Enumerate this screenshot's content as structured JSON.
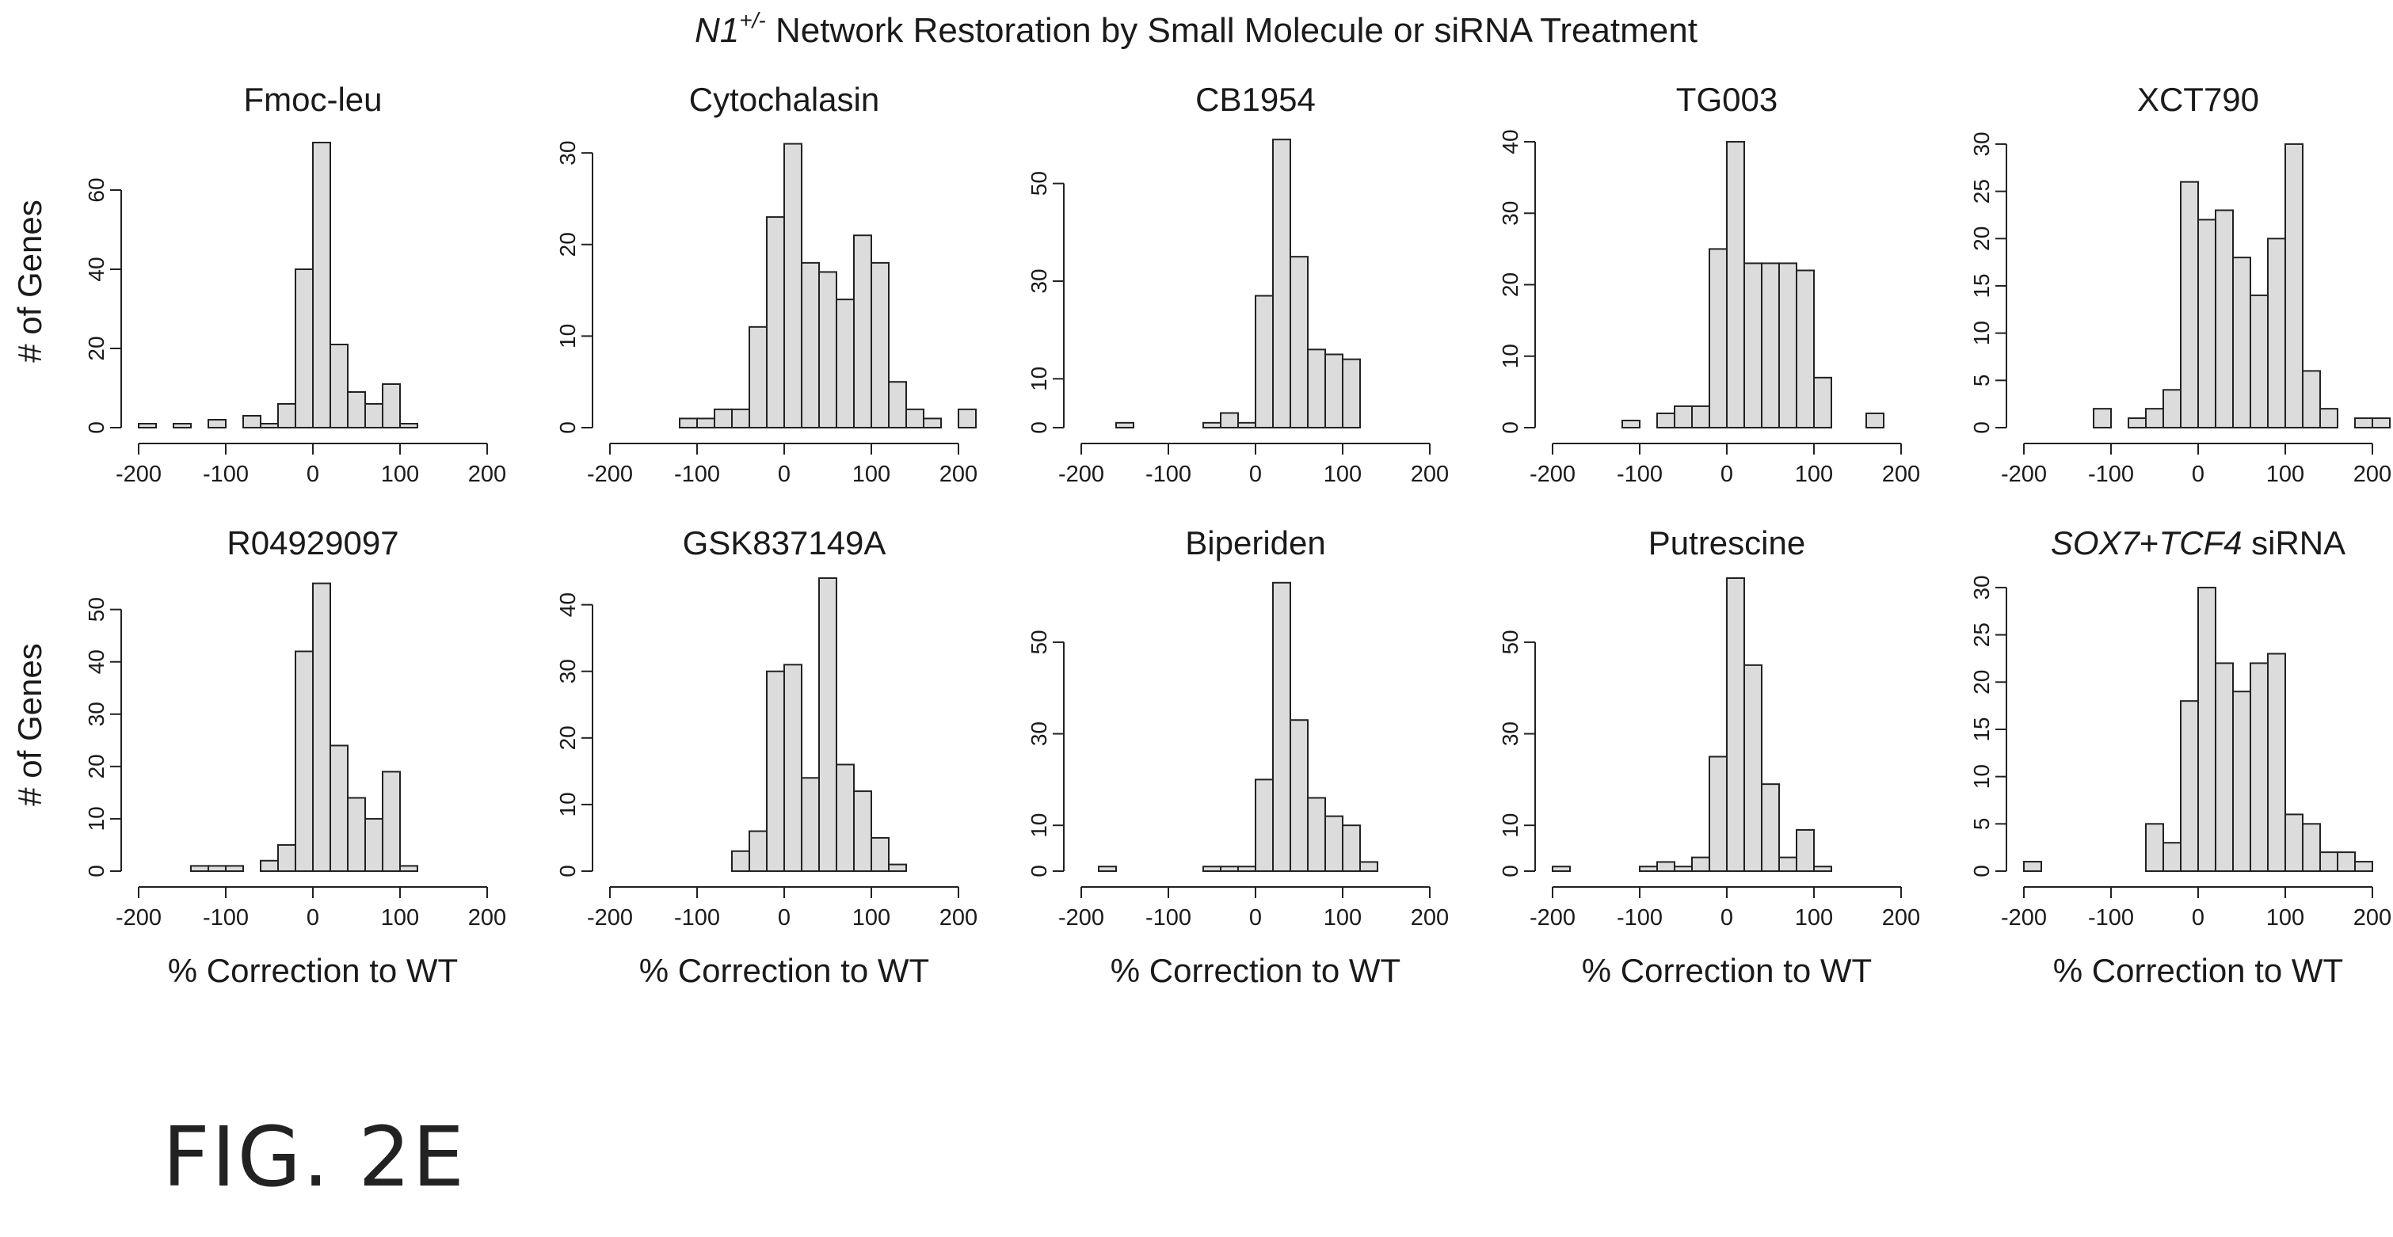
{
  "figure": {
    "title_gene": "N1",
    "title_sup": "+/-",
    "title_rest": " Network Restoration by Small Molecule or siRNA Treatment",
    "fig_label": "FIG. 2E"
  },
  "y_axis_label": "# of Genes",
  "x_axis_label": "% Correction to WT",
  "colors": {
    "bar_fill": "#dcdcdc",
    "bar_stroke": "#222222",
    "axis": "#222222"
  },
  "chart_data": [
    {
      "type": "bar",
      "title": "Fmoc-leu",
      "title_parts": [
        {
          "text": "Fmoc-leu",
          "italic": false
        }
      ],
      "xlim": [
        -200,
        200
      ],
      "xticks": [
        -200,
        -100,
        0,
        100,
        200
      ],
      "ylim": [
        0,
        74
      ],
      "yticks": [
        0,
        20,
        40,
        60
      ],
      "bin_start": -200,
      "bin_width": 20,
      "values": [
        1,
        0,
        1,
        0,
        2,
        0,
        3,
        1,
        6,
        40,
        72,
        21,
        9,
        6,
        11,
        1
      ]
    },
    {
      "type": "bar",
      "title": "Cytochalasin",
      "title_parts": [
        {
          "text": "Cytochalasin",
          "italic": false
        }
      ],
      "xlim": [
        -200,
        200
      ],
      "xticks": [
        -200,
        -100,
        0,
        100,
        200
      ],
      "ylim": [
        0,
        32
      ],
      "yticks": [
        0,
        10,
        20,
        30
      ],
      "bin_start": -200,
      "bin_width": 20,
      "values": [
        0,
        0,
        0,
        0,
        1,
        1,
        2,
        2,
        11,
        23,
        31,
        18,
        17,
        14,
        21,
        18,
        5,
        2,
        1,
        0,
        2
      ]
    },
    {
      "type": "bar",
      "title": "CB1954",
      "title_parts": [
        {
          "text": "CB1954",
          "italic": false
        }
      ],
      "xlim": [
        -200,
        200
      ],
      "xticks": [
        -200,
        -100,
        0,
        100,
        200
      ],
      "ylim": [
        0,
        60
      ],
      "yticks": [
        0,
        10,
        30,
        50
      ],
      "bin_start": -160,
      "bin_width": 20,
      "values": [
        1,
        0,
        0,
        0,
        0,
        1,
        3,
        1,
        27,
        59,
        35,
        16,
        15,
        14
      ]
    },
    {
      "type": "bar",
      "title": "TG003",
      "title_parts": [
        {
          "text": "TG003",
          "italic": false
        }
      ],
      "xlim": [
        -200,
        200
      ],
      "xticks": [
        -200,
        -100,
        0,
        100,
        200
      ],
      "ylim": [
        0,
        41
      ],
      "yticks": [
        0,
        10,
        20,
        30,
        40
      ],
      "bin_start": -120,
      "bin_width": 20,
      "values": [
        1,
        0,
        2,
        3,
        3,
        25,
        40,
        23,
        23,
        23,
        22,
        7,
        0,
        0,
        2
      ]
    },
    {
      "type": "bar",
      "title": "XCT790",
      "title_parts": [
        {
          "text": "XCT790",
          "italic": false
        }
      ],
      "xlim": [
        -200,
        200
      ],
      "xticks": [
        -200,
        -100,
        0,
        100,
        200
      ],
      "ylim": [
        0,
        31
      ],
      "yticks": [
        0,
        5,
        10,
        15,
        20,
        25,
        30
      ],
      "bin_start": -120,
      "bin_width": 20,
      "values": [
        2,
        0,
        1,
        2,
        4,
        26,
        22,
        23,
        18,
        14,
        20,
        30,
        6,
        2,
        0,
        1,
        1
      ]
    },
    {
      "type": "bar",
      "title": "R04929097",
      "title_parts": [
        {
          "text": "R04929097",
          "italic": false
        }
      ],
      "xlim": [
        -200,
        200
      ],
      "xticks": [
        -200,
        -100,
        0,
        100,
        200
      ],
      "ylim": [
        0,
        56
      ],
      "yticks": [
        0,
        10,
        20,
        30,
        40,
        50
      ],
      "bin_start": -140,
      "bin_width": 20,
      "values": [
        1,
        1,
        1,
        0,
        2,
        5,
        42,
        55,
        24,
        14,
        10,
        19,
        1
      ]
    },
    {
      "type": "bar",
      "title": "GSK837149A",
      "title_parts": [
        {
          "text": "GSK837149A",
          "italic": false
        }
      ],
      "xlim": [
        -200,
        200
      ],
      "xticks": [
        -200,
        -100,
        0,
        100,
        200
      ],
      "ylim": [
        0,
        44
      ],
      "yticks": [
        0,
        10,
        20,
        30,
        40
      ],
      "bin_start": -60,
      "bin_width": 20,
      "values": [
        3,
        6,
        30,
        31,
        14,
        44,
        16,
        12,
        5,
        1
      ]
    },
    {
      "type": "bar",
      "title": "Biperiden",
      "title_parts": [
        {
          "text": "Biperiden",
          "italic": false
        }
      ],
      "xlim": [
        -200,
        200
      ],
      "xticks": [
        -200,
        -100,
        0,
        100,
        200
      ],
      "ylim": [
        0,
        64
      ],
      "yticks": [
        0,
        10,
        30,
        50
      ],
      "bin_start": -180,
      "bin_width": 20,
      "values": [
        1,
        0,
        0,
        0,
        0,
        0,
        1,
        1,
        1,
        20,
        63,
        33,
        16,
        12,
        10,
        2
      ]
    },
    {
      "type": "bar",
      "title": "Putrescine",
      "title_parts": [
        {
          "text": "Putrescine",
          "italic": false
        }
      ],
      "xlim": [
        -200,
        200
      ],
      "xticks": [
        -200,
        -100,
        0,
        100,
        200
      ],
      "ylim": [
        0,
        64
      ],
      "yticks": [
        0,
        10,
        30,
        50
      ],
      "bin_start": -200,
      "bin_width": 20,
      "values": [
        1,
        0,
        0,
        0,
        0,
        1,
        2,
        1,
        3,
        25,
        64,
        45,
        19,
        3,
        9,
        1
      ]
    },
    {
      "type": "bar",
      "title": "SOX7+TCF4 siRNA",
      "title_parts": [
        {
          "text": "SOX7",
          "italic": true
        },
        {
          "text": "+",
          "italic": false
        },
        {
          "text": "TCF4",
          "italic": true
        },
        {
          "text": " siRNA",
          "italic": false
        }
      ],
      "xlim": [
        -200,
        200
      ],
      "xticks": [
        -200,
        -100,
        0,
        100,
        200
      ],
      "ylim": [
        0,
        31
      ],
      "yticks": [
        0,
        5,
        10,
        15,
        20,
        25,
        30
      ],
      "bin_start": -200,
      "bin_width": 20,
      "values": [
        1,
        0,
        0,
        0,
        0,
        0,
        0,
        5,
        3,
        18,
        30,
        22,
        19,
        22,
        23,
        6,
        5,
        2,
        2,
        1
      ]
    }
  ]
}
